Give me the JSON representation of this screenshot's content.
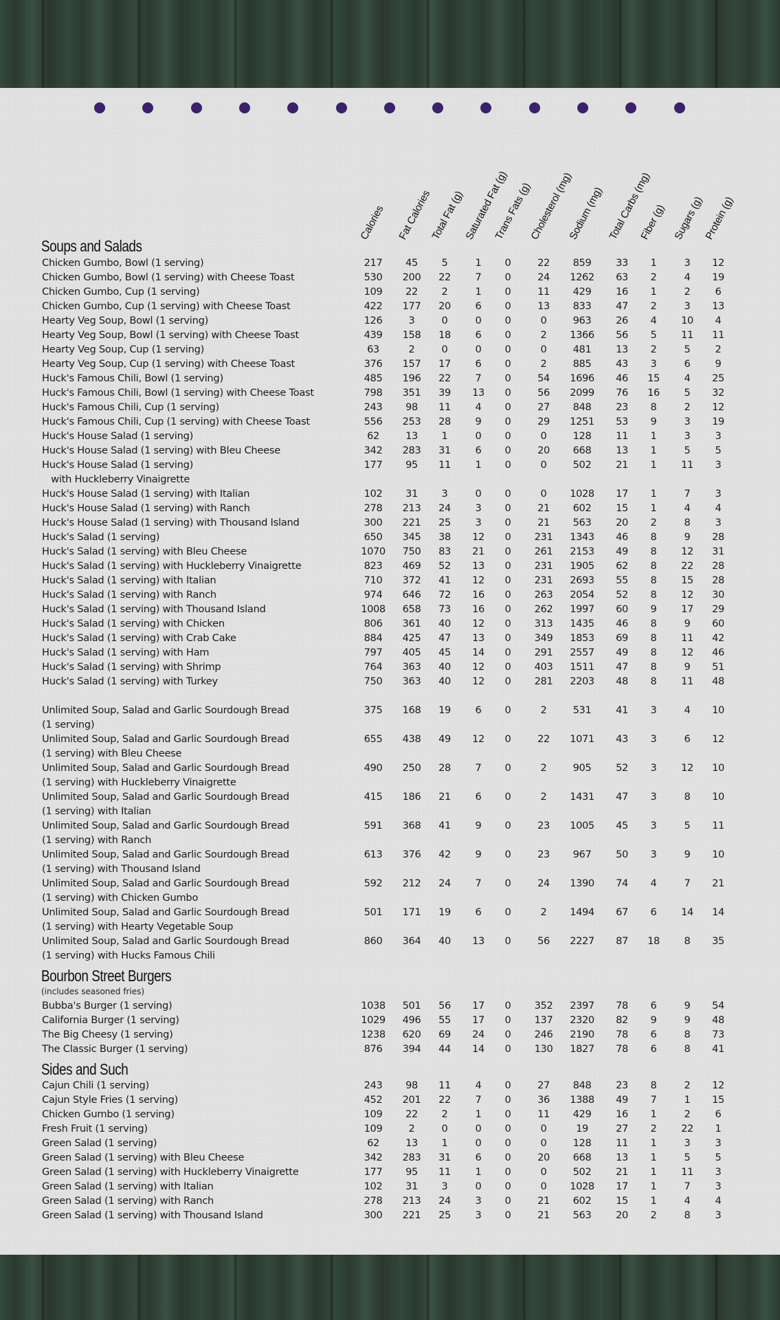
{
  "colors": {
    "accent_dot": "#3a2168",
    "wood": "#2e3d34",
    "paper": "#e3e3e3"
  },
  "dots_count": 13,
  "columns": [
    "Calories",
    "Fat Calories",
    "Total Fat (g)",
    "Saturated Fat (g)",
    "Trans Fats (g)",
    "Cholesterol (mg)",
    "Sodium (mg)",
    "Total Carbs (mg)",
    "Fiber (g)",
    "Sugars (g)",
    "Protein (g)"
  ],
  "sections": [
    {
      "title": "Soups and Salads",
      "subtitle": "",
      "rows": [
        {
          "name": "Chicken Gumbo, Bowl (1 serving)",
          "values": [
            217,
            45,
            5,
            1,
            0,
            22,
            859,
            33,
            1,
            3,
            12
          ]
        },
        {
          "name": "Chicken Gumbo, Bowl (1 serving) with Cheese Toast",
          "values": [
            530,
            200,
            22,
            7,
            0,
            24,
            1262,
            63,
            2,
            4,
            19
          ]
        },
        {
          "name": "Chicken Gumbo, Cup (1 serving)",
          "values": [
            109,
            22,
            2,
            1,
            0,
            11,
            429,
            16,
            1,
            2,
            6
          ]
        },
        {
          "name": "Chicken Gumbo, Cup (1 serving) with Cheese Toast",
          "values": [
            422,
            177,
            20,
            6,
            0,
            13,
            833,
            47,
            2,
            3,
            13
          ]
        },
        {
          "name": "Hearty Veg Soup, Bowl (1 serving)",
          "values": [
            126,
            3,
            0,
            0,
            0,
            0,
            963,
            26,
            4,
            10,
            4
          ]
        },
        {
          "name": "Hearty Veg Soup, Bowl (1 serving) with Cheese Toast",
          "values": [
            439,
            158,
            18,
            6,
            0,
            2,
            1366,
            56,
            5,
            11,
            11
          ]
        },
        {
          "name": "Hearty Veg Soup, Cup (1 serving)",
          "values": [
            63,
            2,
            0,
            0,
            0,
            0,
            481,
            13,
            2,
            5,
            2
          ]
        },
        {
          "name": "Hearty Veg Soup, Cup (1 serving) with Cheese Toast",
          "values": [
            376,
            157,
            17,
            6,
            0,
            2,
            885,
            43,
            3,
            6,
            9
          ]
        },
        {
          "name": "Huck's Famous Chili, Bowl (1 serving)",
          "values": [
            485,
            196,
            22,
            7,
            0,
            54,
            1696,
            46,
            15,
            4,
            25
          ]
        },
        {
          "name": "Huck's Famous Chili, Bowl (1 serving) with Cheese Toast",
          "values": [
            798,
            351,
            39,
            13,
            0,
            56,
            2099,
            76,
            16,
            5,
            32
          ]
        },
        {
          "name": "Huck's Famous Chili, Cup (1 serving)",
          "values": [
            243,
            98,
            11,
            4,
            0,
            27,
            848,
            23,
            8,
            2,
            12
          ]
        },
        {
          "name": "Huck's Famous Chili, Cup (1 serving) with Cheese Toast",
          "values": [
            556,
            253,
            28,
            9,
            0,
            29,
            1251,
            53,
            9,
            3,
            19
          ]
        },
        {
          "name": "Huck's House Salad (1 serving)",
          "values": [
            62,
            13,
            1,
            0,
            0,
            0,
            128,
            11,
            1,
            3,
            3
          ]
        },
        {
          "name": "Huck's House Salad (1 serving) with Bleu Cheese",
          "values": [
            342,
            283,
            31,
            6,
            0,
            20,
            668,
            13,
            1,
            5,
            5
          ]
        },
        {
          "name": "Huck's House Salad (1 serving)\n   with Huckleberry Vinaigrette",
          "values": [
            177,
            95,
            11,
            1,
            0,
            0,
            502,
            21,
            1,
            11,
            3
          ]
        },
        {
          "name": "Huck's House Salad (1 serving) with Italian",
          "values": [
            102,
            31,
            3,
            0,
            0,
            0,
            1028,
            17,
            1,
            7,
            3
          ]
        },
        {
          "name": "Huck's House Salad (1 serving) with Ranch",
          "values": [
            278,
            213,
            24,
            3,
            0,
            21,
            602,
            15,
            1,
            4,
            4
          ]
        },
        {
          "name": "Huck's House Salad (1 serving) with Thousand Island",
          "values": [
            300,
            221,
            25,
            3,
            0,
            21,
            563,
            20,
            2,
            8,
            3
          ]
        },
        {
          "name": "Huck's Salad (1 serving)",
          "values": [
            650,
            345,
            38,
            12,
            0,
            231,
            1343,
            46,
            8,
            9,
            28
          ]
        },
        {
          "name": "Huck's Salad (1 serving) with Bleu Cheese",
          "values": [
            1070,
            750,
            83,
            21,
            0,
            261,
            2153,
            49,
            8,
            12,
            31
          ]
        },
        {
          "name": "Huck's Salad (1 serving) with Huckleberry Vinaigrette",
          "values": [
            823,
            469,
            52,
            13,
            0,
            231,
            1905,
            62,
            8,
            22,
            28
          ]
        },
        {
          "name": "Huck's Salad (1 serving) with Italian",
          "values": [
            710,
            372,
            41,
            12,
            0,
            231,
            2693,
            55,
            8,
            15,
            28
          ]
        },
        {
          "name": "Huck's Salad (1 serving) with Ranch",
          "values": [
            974,
            646,
            72,
            16,
            0,
            263,
            2054,
            52,
            8,
            12,
            30
          ]
        },
        {
          "name": "Huck's Salad (1 serving) with Thousand Island",
          "values": [
            1008,
            658,
            73,
            16,
            0,
            262,
            1997,
            60,
            9,
            17,
            29
          ]
        },
        {
          "name": "Huck's Salad (1 serving) with Chicken",
          "values": [
            806,
            361,
            40,
            12,
            0,
            313,
            1435,
            46,
            8,
            9,
            60
          ]
        },
        {
          "name": "Huck's Salad (1 serving) with Crab Cake",
          "values": [
            884,
            425,
            47,
            13,
            0,
            349,
            1853,
            69,
            8,
            11,
            42
          ]
        },
        {
          "name": "Huck's Salad (1 serving) with Ham",
          "values": [
            797,
            405,
            45,
            14,
            0,
            291,
            2557,
            49,
            8,
            12,
            46
          ]
        },
        {
          "name": "Huck's Salad (1 serving) with Shrimp",
          "values": [
            764,
            363,
            40,
            12,
            0,
            403,
            1511,
            47,
            8,
            9,
            51
          ]
        },
        {
          "name": "Huck's Salad (1 serving) with Turkey",
          "values": [
            750,
            363,
            40,
            12,
            0,
            281,
            2203,
            48,
            8,
            11,
            48
          ]
        },
        {
          "gap": true
        },
        {
          "name": "Unlimited Soup, Salad and Garlic Sourdough Bread\n(1 serving)",
          "values": [
            375,
            168,
            19,
            6,
            0,
            2,
            531,
            41,
            3,
            4,
            10
          ]
        },
        {
          "name": "Unlimited Soup, Salad and Garlic Sourdough Bread\n(1 serving) with Bleu Cheese",
          "values": [
            655,
            438,
            49,
            12,
            0,
            22,
            1071,
            43,
            3,
            6,
            12
          ]
        },
        {
          "name": "Unlimited Soup, Salad and Garlic Sourdough Bread\n(1 serving) with Huckleberry Vinaigrette",
          "values": [
            490,
            250,
            28,
            7,
            0,
            2,
            905,
            52,
            3,
            12,
            10
          ]
        },
        {
          "name": "Unlimited Soup, Salad and Garlic Sourdough Bread\n(1 serving) with Italian",
          "values": [
            415,
            186,
            21,
            6,
            0,
            2,
            1431,
            47,
            3,
            8,
            10
          ]
        },
        {
          "name": "Unlimited Soup, Salad and Garlic Sourdough Bread\n(1 serving) with Ranch",
          "values": [
            591,
            368,
            41,
            9,
            0,
            23,
            1005,
            45,
            3,
            5,
            11
          ]
        },
        {
          "name": "Unlimited Soup, Salad and Garlic Sourdough Bread\n(1 serving) with Thousand Island",
          "values": [
            613,
            376,
            42,
            9,
            0,
            23,
            967,
            50,
            3,
            9,
            10
          ]
        },
        {
          "name": "Unlimited Soup, Salad and Garlic Sourdough Bread\n(1 serving) with Chicken Gumbo",
          "values": [
            592,
            212,
            24,
            7,
            0,
            24,
            1390,
            74,
            4,
            7,
            21
          ]
        },
        {
          "name": "Unlimited Soup, Salad and Garlic Sourdough Bread\n(1 serving) with Hearty Vegetable Soup",
          "values": [
            501,
            171,
            19,
            6,
            0,
            2,
            1494,
            67,
            6,
            14,
            14
          ]
        },
        {
          "name": "Unlimited Soup, Salad and Garlic Sourdough Bread\n(1 serving) with Hucks Famous Chili",
          "values": [
            860,
            364,
            40,
            13,
            0,
            56,
            2227,
            87,
            18,
            8,
            35
          ]
        }
      ]
    },
    {
      "title": "Bourbon Street Burgers",
      "subtitle": "(includes seasoned fries)",
      "rows": [
        {
          "name": "Bubba's Burger (1 serving)",
          "values": [
            1038,
            501,
            56,
            17,
            0,
            352,
            2397,
            78,
            6,
            9,
            54
          ]
        },
        {
          "name": "California Burger (1 serving)",
          "values": [
            1029,
            496,
            55,
            17,
            0,
            137,
            2320,
            82,
            9,
            9,
            48
          ]
        },
        {
          "name": "The Big Cheesy (1 serving)",
          "values": [
            1238,
            620,
            69,
            24,
            0,
            246,
            2190,
            78,
            6,
            8,
            73
          ]
        },
        {
          "name": "The Classic Burger (1 serving)",
          "values": [
            876,
            394,
            44,
            14,
            0,
            130,
            1827,
            78,
            6,
            8,
            41
          ]
        }
      ]
    },
    {
      "title": "Sides and Such",
      "subtitle": "",
      "rows": [
        {
          "name": "Cajun Chili (1 serving)",
          "values": [
            243,
            98,
            11,
            4,
            0,
            27,
            848,
            23,
            8,
            2,
            12
          ]
        },
        {
          "name": "Cajun Style Fries (1 serving)",
          "values": [
            452,
            201,
            22,
            7,
            0,
            36,
            1388,
            49,
            7,
            1,
            15
          ]
        },
        {
          "name": "Chicken Gumbo (1 serving)",
          "values": [
            109,
            22,
            2,
            1,
            0,
            11,
            429,
            16,
            1,
            2,
            6
          ]
        },
        {
          "name": "Fresh Fruit (1 serving)",
          "values": [
            109,
            2,
            0,
            0,
            0,
            0,
            19,
            27,
            2,
            22,
            1
          ]
        },
        {
          "name": "Green Salad (1 serving)",
          "values": [
            62,
            13,
            1,
            0,
            0,
            0,
            128,
            11,
            1,
            3,
            3
          ]
        },
        {
          "name": "Green Salad (1 serving) with Bleu Cheese",
          "values": [
            342,
            283,
            31,
            6,
            0,
            20,
            668,
            13,
            1,
            5,
            5
          ]
        },
        {
          "name": "Green Salad (1 serving) with Huckleberry Vinaigrette",
          "values": [
            177,
            95,
            11,
            1,
            0,
            0,
            502,
            21,
            1,
            11,
            3
          ]
        },
        {
          "name": "Green Salad (1 serving) with Italian",
          "values": [
            102,
            31,
            3,
            0,
            0,
            0,
            1028,
            17,
            1,
            7,
            3
          ]
        },
        {
          "name": "Green Salad (1 serving) with Ranch",
          "values": [
            278,
            213,
            24,
            3,
            0,
            21,
            602,
            15,
            1,
            4,
            4
          ]
        },
        {
          "name": "Green Salad (1 serving) with Thousand Island",
          "values": [
            300,
            221,
            25,
            3,
            0,
            21,
            563,
            20,
            2,
            8,
            3
          ]
        }
      ]
    }
  ]
}
